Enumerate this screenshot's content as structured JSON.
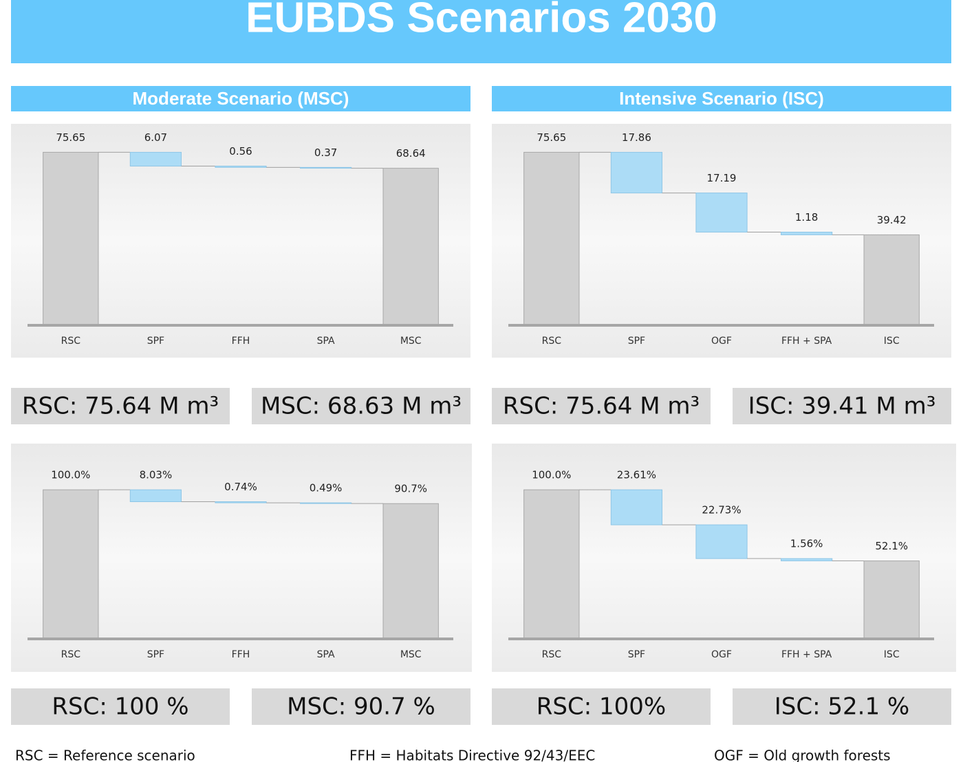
{
  "title": "EUBDS Scenarios 2030",
  "sections": [
    "Moderate Scenario (MSC)",
    "Intensive Scenario (ISC)"
  ],
  "chart_data": [
    {
      "type": "waterfall",
      "categories": [
        "RSC",
        "SPF",
        "FFH",
        "SPA",
        "MSC"
      ],
      "values": [
        75.65,
        6.07,
        0.56,
        0.37,
        68.64
      ],
      "measures": [
        "total",
        "decrease",
        "decrease",
        "decrease",
        "total"
      ],
      "total_color": "#d0d0d0",
      "decrease_color": "#acdcf6",
      "ylim": [
        0,
        80
      ]
    },
    {
      "type": "waterfall",
      "categories": [
        "RSC",
        "SPF",
        "OGF",
        "FFH + SPA",
        "ISC"
      ],
      "values": [
        75.65,
        17.86,
        17.19,
        1.18,
        39.42
      ],
      "measures": [
        "total",
        "decrease",
        "decrease",
        "decrease",
        "total"
      ],
      "total_color": "#d0d0d0",
      "decrease_color": "#acdcf6",
      "ylim": [
        0,
        80
      ]
    },
    {
      "type": "waterfall",
      "categories": [
        "RSC",
        "SPF",
        "FFH",
        "SPA",
        "MSC"
      ],
      "values": [
        100,
        8.03,
        0.74,
        0.49,
        90.7
      ],
      "value_labels": [
        "100.0%",
        "8.03%",
        "0.74%",
        "0.49%",
        "90.7%"
      ],
      "measures": [
        "total",
        "decrease",
        "decrease",
        "decrease",
        "total"
      ],
      "total_color": "#d0d0d0",
      "decrease_color": "#acdcf6",
      "ylim": [
        0,
        120
      ]
    },
    {
      "type": "waterfall",
      "categories": [
        "RSC",
        "SPF",
        "OGF",
        "FFH + SPA",
        "ISC"
      ],
      "values": [
        100,
        23.61,
        22.73,
        1.56,
        52.1
      ],
      "value_labels": [
        "100.0%",
        "23.61%",
        "22.73%",
        "1.56%",
        "52.1%"
      ],
      "measures": [
        "total",
        "decrease",
        "decrease",
        "decrease",
        "total"
      ],
      "total_color": "#d0d0d0",
      "decrease_color": "#acdcf6",
      "ylim": [
        0,
        120
      ]
    }
  ],
  "stats": [
    [
      "RSC: 75.64 M m³",
      "MSC: 68.63 M m³",
      "RSC: 75.64 M m³",
      "ISC: 39.41 M m³"
    ],
    [
      "RSC: 100 %",
      "MSC: 90.7 %",
      "RSC: 100%",
      "ISC: 52.1 %"
    ]
  ],
  "footer": [
    "RSC = Reference scenario",
    "FFH = Habitats Directive 92/43/EEC",
    "OGF = Old growth forests"
  ]
}
